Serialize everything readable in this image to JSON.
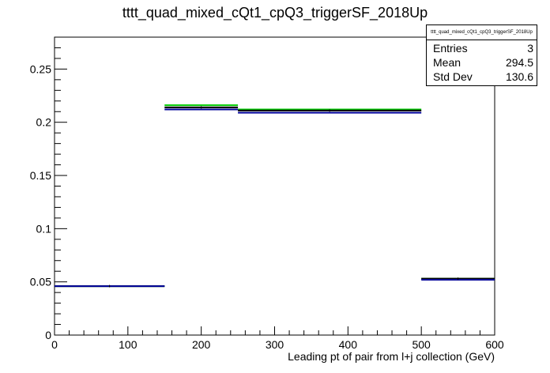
{
  "chart_data": {
    "type": "bar",
    "title": "tttt_quad_mixed_cQt1_cpQ3_triggerSF_2018Up",
    "xlabel": "Leading pt of pair from l+j collection (GeV)",
    "ylabel": "",
    "xlim": [
      0,
      600
    ],
    "ylim": [
      0,
      0.28
    ],
    "x_ticks": [
      "0",
      "100",
      "200",
      "300",
      "400",
      "500",
      "600"
    ],
    "y_ticks": [
      "0",
      "0.05",
      "0.1",
      "0.15",
      "0.2",
      "0.25"
    ],
    "bin_edges": [
      0,
      150,
      250,
      500,
      600
    ],
    "series": [
      {
        "color": "#00cc00",
        "values": [
          0.046,
          0.216,
          0.212,
          0.053
        ]
      },
      {
        "color": "#000000",
        "values": [
          0.046,
          0.214,
          0.211,
          0.053
        ]
      },
      {
        "color": "#000099",
        "values": [
          0.046,
          0.212,
          0.209,
          0.052
        ]
      }
    ],
    "grid": false,
    "legend": "top-right"
  },
  "stats": {
    "title": "tttt_quad_mixed_cQt1_cpQ3_triggerSF_2018Up",
    "entries_label": "Entries",
    "entries_value": "3",
    "mean_label": "Mean",
    "mean_value": "294.5",
    "stddev_label": "Std Dev",
    "stddev_value": "130.6"
  }
}
